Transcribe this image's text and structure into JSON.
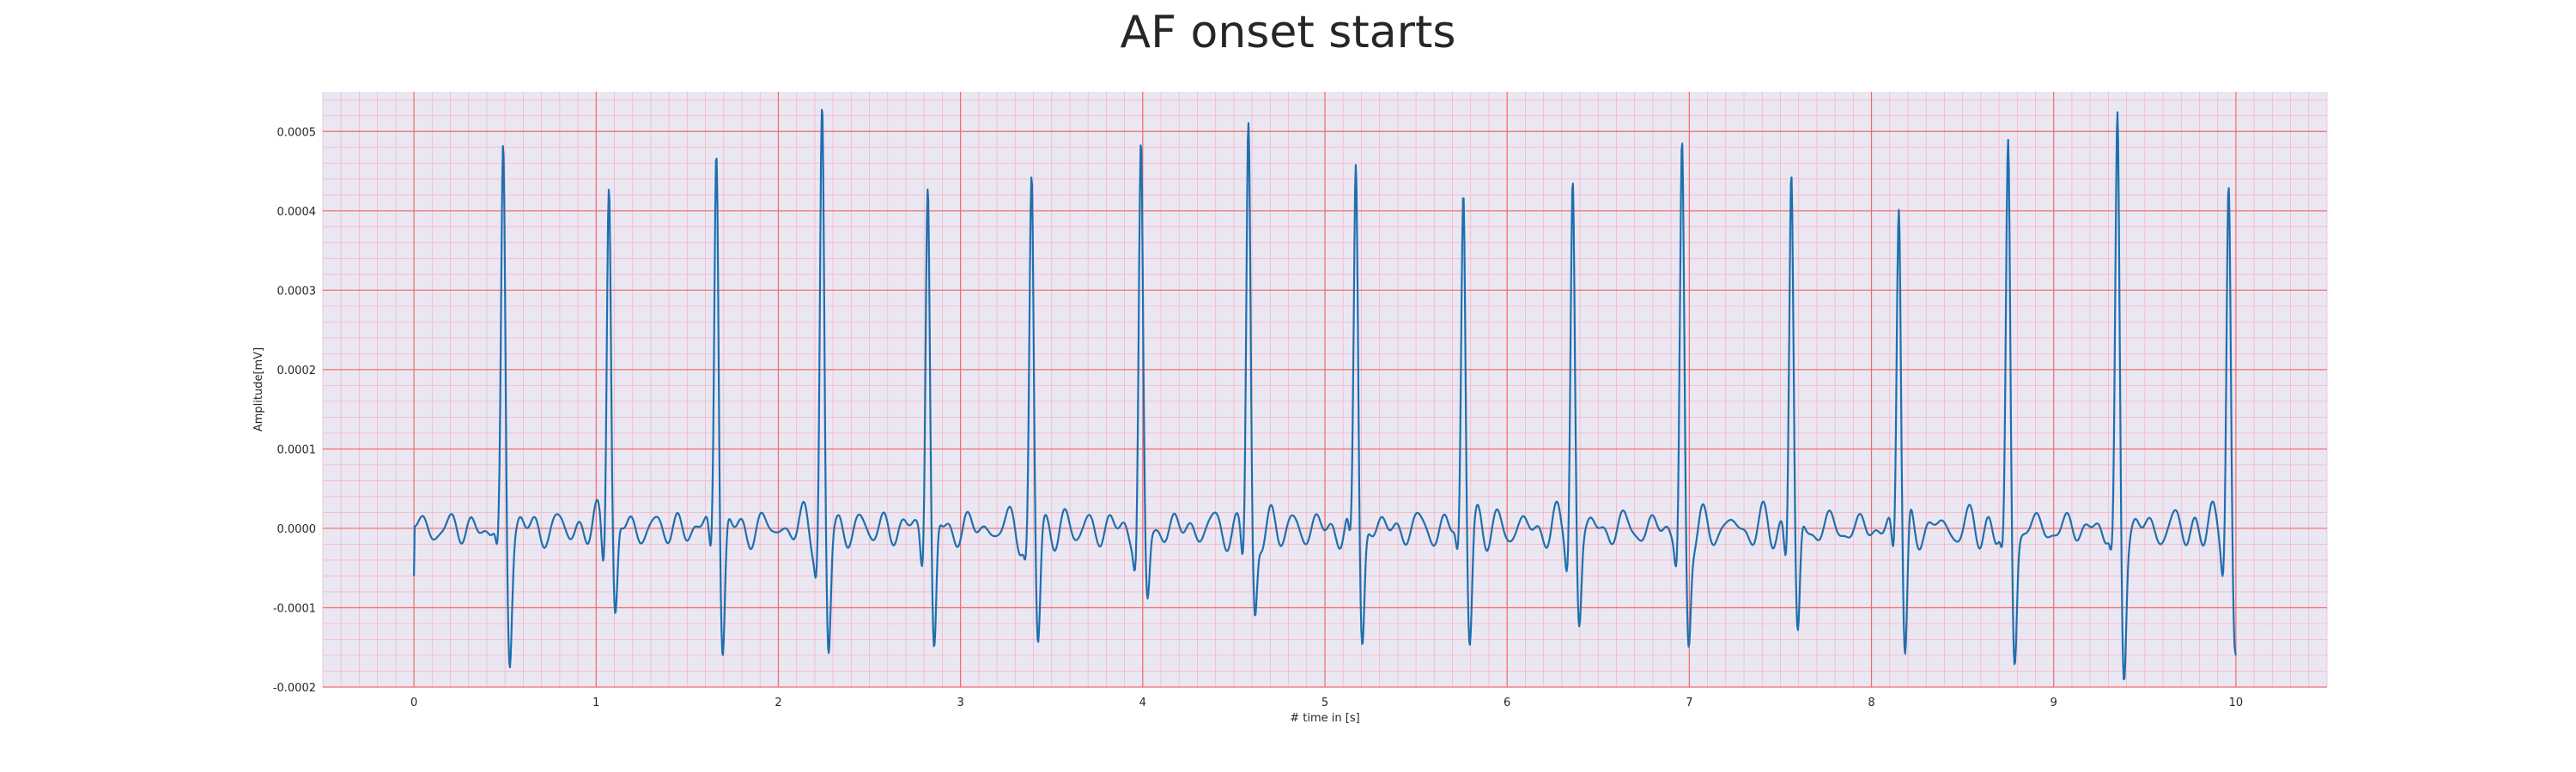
{
  "chart_data": {
    "type": "line",
    "title": "AF onset starts",
    "xlabel": "# time in [s]",
    "ylabel": "Amplitude[mV]",
    "xlim": [
      -0.5,
      10.5
    ],
    "ylim": [
      -0.0002,
      0.00055
    ],
    "xticks": [
      0,
      1,
      2,
      3,
      4,
      5,
      6,
      7,
      8,
      9,
      10
    ],
    "xtick_labels": [
      "0",
      "1",
      "2",
      "3",
      "4",
      "5",
      "6",
      "7",
      "8",
      "9",
      "10"
    ],
    "yticks": [
      -0.0002,
      -0.0001,
      0.0,
      0.0001,
      0.0002,
      0.0003,
      0.0004,
      0.0005
    ],
    "ytick_labels": [
      "-0.0002",
      "-0.0001",
      "0.0000",
      "0.0001",
      "0.0002",
      "0.0003",
      "0.0004",
      "0.0005"
    ],
    "grid": "major red, minor pink",
    "series": [
      {
        "color": "#1f6fae",
        "start_value": -6e-05,
        "end_value": -0.00016,
        "r_peaks": [
          {
            "t": 0.49,
            "r": 0.00047,
            "s": -0.00015
          },
          {
            "t": 1.07,
            "r": 0.00046,
            "s": -0.00012
          },
          {
            "t": 1.66,
            "r": 0.0005,
            "s": -0.00016
          },
          {
            "t": 2.24,
            "r": 0.00052,
            "s": -0.00016
          },
          {
            "t": 2.82,
            "r": 0.00045,
            "s": -0.00017
          },
          {
            "t": 3.39,
            "r": 0.00043,
            "s": -0.00014
          },
          {
            "t": 3.99,
            "r": 0.00047,
            "s": -0.0001
          },
          {
            "t": 4.58,
            "r": 0.00051,
            "s": -0.00012
          },
          {
            "t": 5.17,
            "r": 0.00046,
            "s": -0.00014
          },
          {
            "t": 5.76,
            "r": 0.00043,
            "s": -0.00013
          },
          {
            "t": 6.36,
            "r": 0.00044,
            "s": -0.00012
          },
          {
            "t": 6.96,
            "r": 0.00047,
            "s": -0.00015
          },
          {
            "t": 7.56,
            "r": 0.00046,
            "s": -0.00015
          },
          {
            "t": 8.15,
            "r": 0.00043,
            "s": -0.00017
          },
          {
            "t": 8.75,
            "r": 0.00047,
            "s": -0.00016
          },
          {
            "t": 9.35,
            "r": 0.0005,
            "s": -0.00017
          },
          {
            "t": 9.96,
            "r": 0.00044,
            "s": -0.00016
          }
        ],
        "baseline_fibrillation_amplitude": 3e-05
      }
    ]
  }
}
